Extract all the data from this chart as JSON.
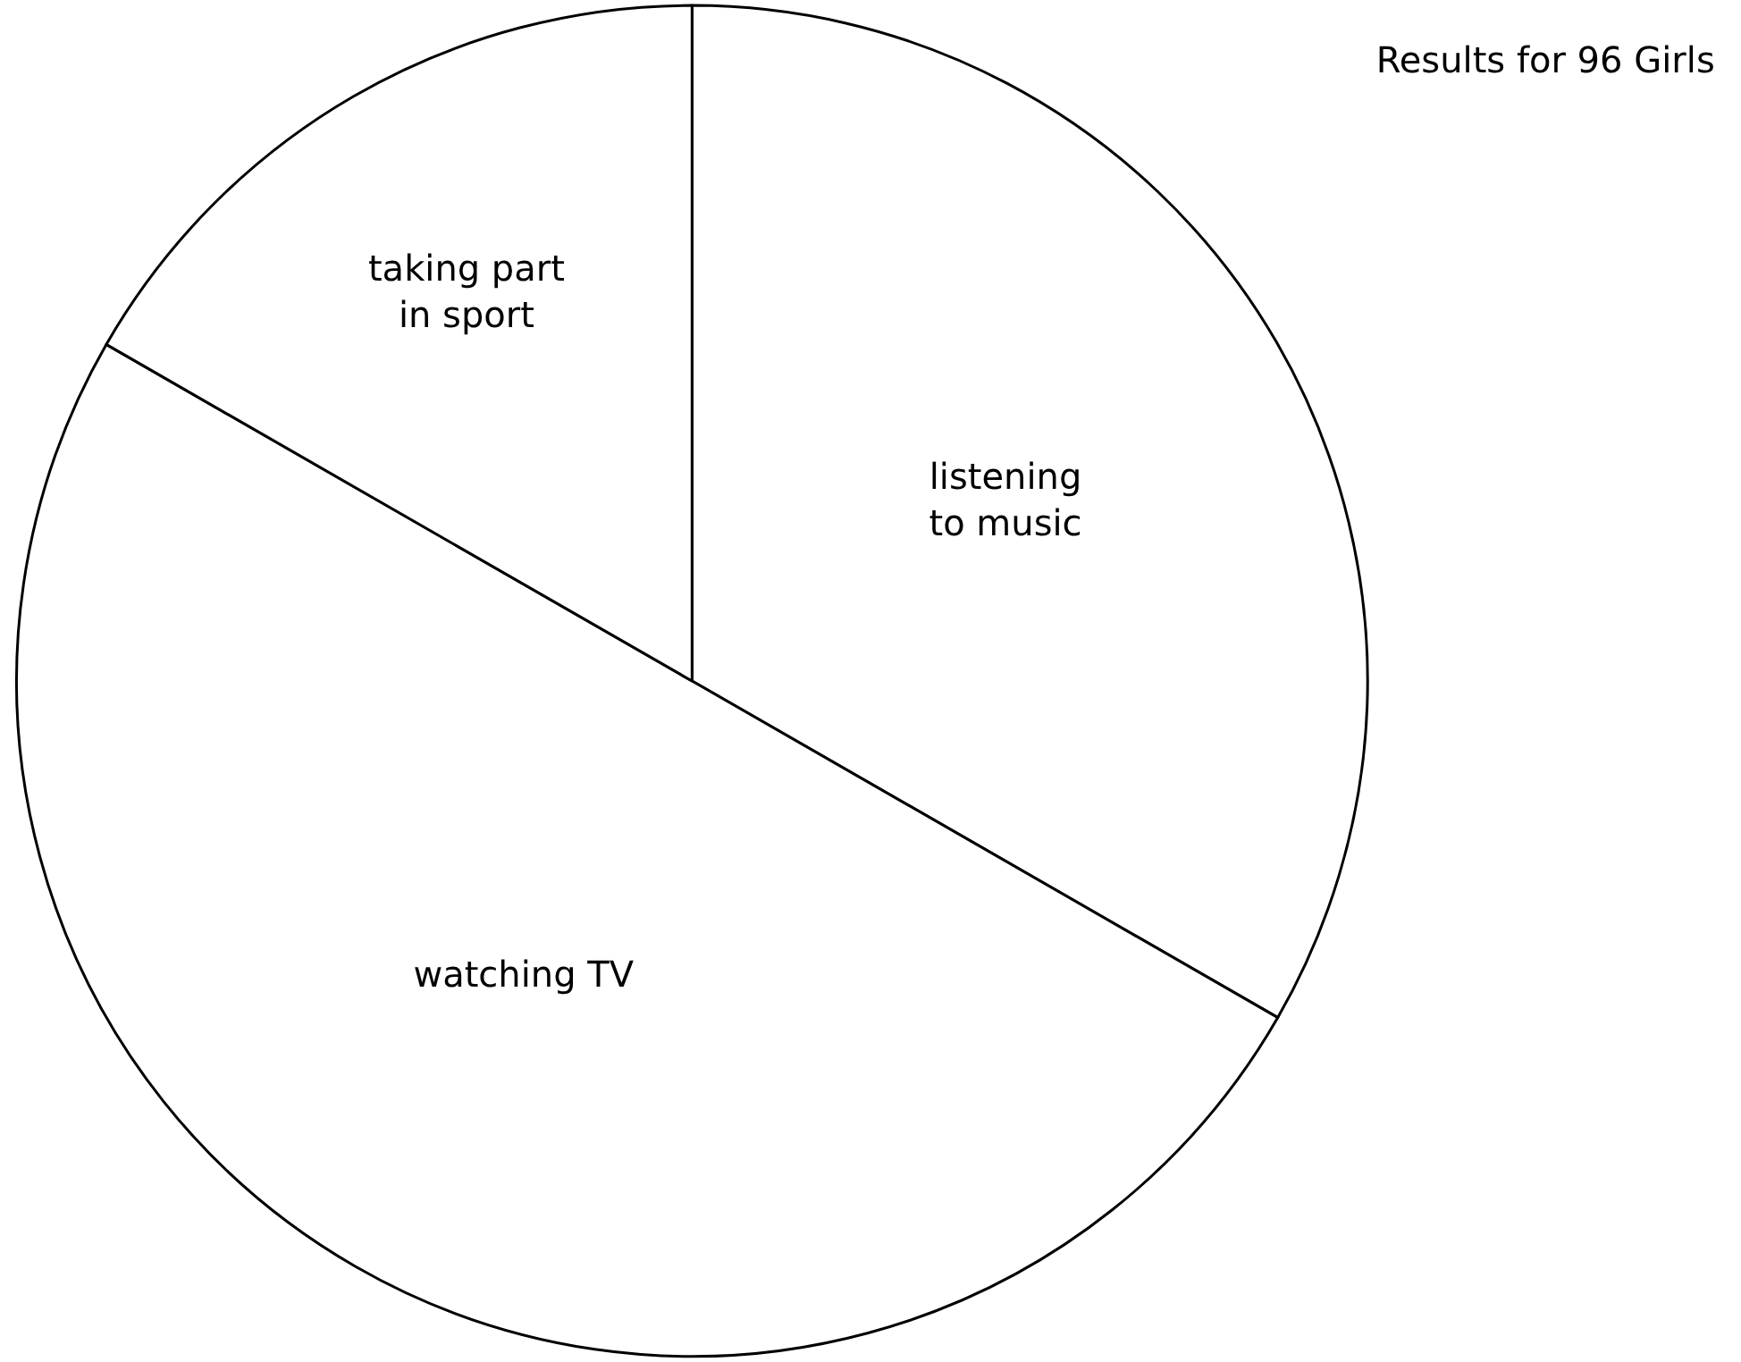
{
  "chart_data": {
    "type": "pie",
    "title": "Results for 96 Girls",
    "categories": [
      "listening\nto music",
      "watching TV",
      "taking part\nin sport"
    ],
    "values": [
      33.3,
      50,
      16.7
    ],
    "colors": [
      "#ffffff",
      "#ffffff",
      "#ffffff"
    ],
    "legend": false
  }
}
